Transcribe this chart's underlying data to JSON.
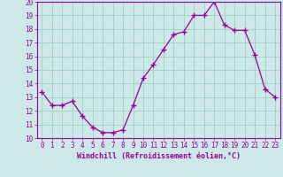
{
  "x": [
    0,
    1,
    2,
    3,
    4,
    5,
    6,
    7,
    8,
    9,
    10,
    11,
    12,
    13,
    14,
    15,
    16,
    17,
    18,
    19,
    20,
    21,
    22,
    23
  ],
  "y": [
    13.4,
    12.4,
    12.4,
    12.7,
    11.6,
    10.8,
    10.4,
    10.4,
    10.6,
    12.4,
    14.4,
    15.4,
    16.5,
    17.6,
    17.8,
    19.0,
    19.0,
    20.0,
    18.3,
    17.9,
    17.9,
    16.1,
    13.6,
    13.0
  ],
  "xlabel": "Windchill (Refroidissement éolien,°C)",
  "xlim": [
    -0.5,
    23.5
  ],
  "ylim": [
    10,
    20
  ],
  "yticks": [
    10,
    11,
    12,
    13,
    14,
    15,
    16,
    17,
    18,
    19,
    20
  ],
  "xticks": [
    0,
    1,
    2,
    3,
    4,
    5,
    6,
    7,
    8,
    9,
    10,
    11,
    12,
    13,
    14,
    15,
    16,
    17,
    18,
    19,
    20,
    21,
    22,
    23
  ],
  "line_color": "#990099",
  "marker": "+",
  "marker_size": 4,
  "bg_color": "#cce8e8",
  "grid_color": "#99ccbb",
  "axis_label_color": "#990099",
  "tick_color": "#990099",
  "spine_color": "#990099",
  "tick_fontsize": 5.5,
  "xlabel_fontsize": 6.0
}
